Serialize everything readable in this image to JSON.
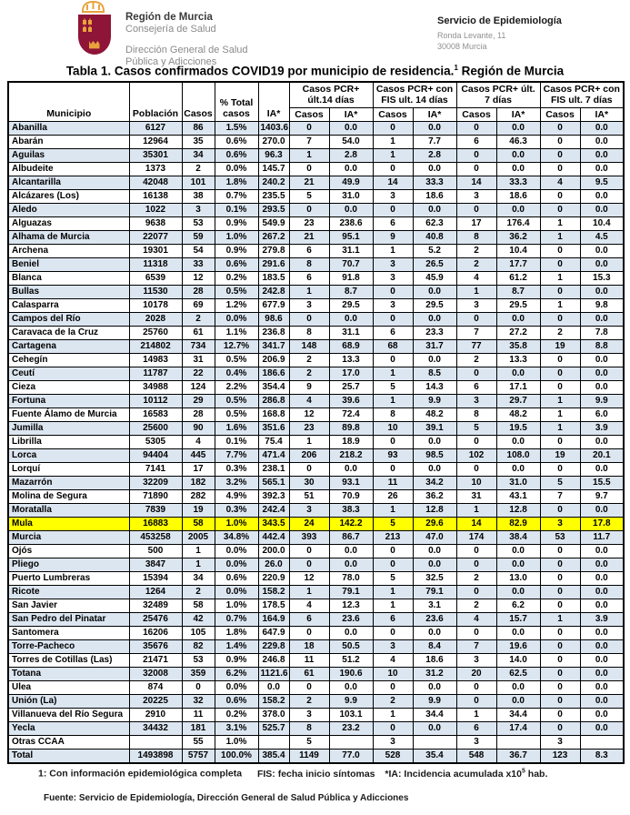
{
  "header": {
    "logo_org": "Región de Murcia",
    "logo_dept": "Consejería de Salud",
    "logo_sub": "Dirección General de Salud Pública y Adicciones",
    "service_title": "Servicio de Epidemiología",
    "address_line1": "Ronda Levante, 11",
    "address_line2": "30008 Murcia"
  },
  "title": {
    "prefix": "Tabla 1. Casos confirmados COVID19 por municipio de residencia.",
    "sup": "1",
    "suffix": " Región de Murcia"
  },
  "table": {
    "main_headers": [
      "Municipio",
      "Población",
      "Casos",
      "% Total casos",
      "IA*"
    ],
    "group_headers": [
      "Casos PCR+ últ.14 días",
      "Casos PCR+ con FIS ult. 14 días",
      "Casos PCR+ últ. 7 días",
      "Casos PCR+ con FIS ult. 7 días"
    ],
    "sub_casos": "Casos",
    "sub_ia": "IA*",
    "rows": [
      {
        "municipio": "Abanilla",
        "values": [
          "6127",
          "86",
          "1.5%",
          "1403.6",
          "0",
          "0.0",
          "0",
          "0.0",
          "0",
          "0.0",
          "0",
          "0.0"
        ]
      },
      {
        "municipio": "Abarán",
        "values": [
          "12964",
          "35",
          "0.6%",
          "270.0",
          "7",
          "54.0",
          "1",
          "7.7",
          "6",
          "46.3",
          "0",
          "0.0"
        ]
      },
      {
        "municipio": "Aguilas",
        "values": [
          "35301",
          "34",
          "0.6%",
          "96.3",
          "1",
          "2.8",
          "1",
          "2.8",
          "0",
          "0.0",
          "0",
          "0.0"
        ]
      },
      {
        "municipio": "Albudeite",
        "values": [
          "1373",
          "2",
          "0.0%",
          "145.7",
          "0",
          "0.0",
          "0",
          "0.0",
          "0",
          "0.0",
          "0",
          "0.0"
        ]
      },
      {
        "municipio": "Alcantarilla",
        "values": [
          "42048",
          "101",
          "1.8%",
          "240.2",
          "21",
          "49.9",
          "14",
          "33.3",
          "14",
          "33.3",
          "4",
          "9.5"
        ]
      },
      {
        "municipio": "Alcázares (Los)",
        "values": [
          "16138",
          "38",
          "0.7%",
          "235.5",
          "5",
          "31.0",
          "3",
          "18.6",
          "3",
          "18.6",
          "0",
          "0.0"
        ]
      },
      {
        "municipio": "Aledo",
        "values": [
          "1022",
          "3",
          "0.1%",
          "293.5",
          "0",
          "0.0",
          "0",
          "0.0",
          "0",
          "0.0",
          "0",
          "0.0"
        ]
      },
      {
        "municipio": "Alguazas",
        "values": [
          "9638",
          "53",
          "0.9%",
          "549.9",
          "23",
          "238.6",
          "6",
          "62.3",
          "17",
          "176.4",
          "1",
          "10.4"
        ]
      },
      {
        "municipio": "Alhama de Murcia",
        "values": [
          "22077",
          "59",
          "1.0%",
          "267.2",
          "21",
          "95.1",
          "9",
          "40.8",
          "8",
          "36.2",
          "1",
          "4.5"
        ]
      },
      {
        "municipio": "Archena",
        "values": [
          "19301",
          "54",
          "0.9%",
          "279.8",
          "6",
          "31.1",
          "1",
          "5.2",
          "2",
          "10.4",
          "0",
          "0.0"
        ]
      },
      {
        "municipio": "Beniel",
        "values": [
          "11318",
          "33",
          "0.6%",
          "291.6",
          "8",
          "70.7",
          "3",
          "26.5",
          "2",
          "17.7",
          "0",
          "0.0"
        ]
      },
      {
        "municipio": "Blanca",
        "values": [
          "6539",
          "12",
          "0.2%",
          "183.5",
          "6",
          "91.8",
          "3",
          "45.9",
          "4",
          "61.2",
          "1",
          "15.3"
        ]
      },
      {
        "municipio": "Bullas",
        "values": [
          "11530",
          "28",
          "0.5%",
          "242.8",
          "1",
          "8.7",
          "0",
          "0.0",
          "1",
          "8.7",
          "0",
          "0.0"
        ]
      },
      {
        "municipio": "Calasparra",
        "values": [
          "10178",
          "69",
          "1.2%",
          "677.9",
          "3",
          "29.5",
          "3",
          "29.5",
          "3",
          "29.5",
          "1",
          "9.8"
        ]
      },
      {
        "municipio": "Campos del Río",
        "values": [
          "2028",
          "2",
          "0.0%",
          "98.6",
          "0",
          "0.0",
          "0",
          "0.0",
          "0",
          "0.0",
          "0",
          "0.0"
        ]
      },
      {
        "municipio": "Caravaca de la Cruz",
        "values": [
          "25760",
          "61",
          "1.1%",
          "236.8",
          "8",
          "31.1",
          "6",
          "23.3",
          "7",
          "27.2",
          "2",
          "7.8"
        ]
      },
      {
        "municipio": "Cartagena",
        "values": [
          "214802",
          "734",
          "12.7%",
          "341.7",
          "148",
          "68.9",
          "68",
          "31.7",
          "77",
          "35.8",
          "19",
          "8.8"
        ]
      },
      {
        "municipio": "Cehegín",
        "values": [
          "14983",
          "31",
          "0.5%",
          "206.9",
          "2",
          "13.3",
          "0",
          "0.0",
          "2",
          "13.3",
          "0",
          "0.0"
        ]
      },
      {
        "municipio": "Ceutí",
        "values": [
          "11787",
          "22",
          "0.4%",
          "186.6",
          "2",
          "17.0",
          "1",
          "8.5",
          "0",
          "0.0",
          "0",
          "0.0"
        ]
      },
      {
        "municipio": "Cieza",
        "values": [
          "34988",
          "124",
          "2.2%",
          "354.4",
          "9",
          "25.7",
          "5",
          "14.3",
          "6",
          "17.1",
          "0",
          "0.0"
        ]
      },
      {
        "municipio": "Fortuna",
        "values": [
          "10112",
          "29",
          "0.5%",
          "286.8",
          "4",
          "39.6",
          "1",
          "9.9",
          "3",
          "29.7",
          "1",
          "9.9"
        ]
      },
      {
        "municipio": "Fuente Álamo de Murcia",
        "values": [
          "16583",
          "28",
          "0.5%",
          "168.8",
          "12",
          "72.4",
          "8",
          "48.2",
          "8",
          "48.2",
          "1",
          "6.0"
        ]
      },
      {
        "municipio": "Jumilla",
        "values": [
          "25600",
          "90",
          "1.6%",
          "351.6",
          "23",
          "89.8",
          "10",
          "39.1",
          "5",
          "19.5",
          "1",
          "3.9"
        ]
      },
      {
        "municipio": "Librilla",
        "values": [
          "5305",
          "4",
          "0.1%",
          "75.4",
          "1",
          "18.9",
          "0",
          "0.0",
          "0",
          "0.0",
          "0",
          "0.0"
        ]
      },
      {
        "municipio": "Lorca",
        "values": [
          "94404",
          "445",
          "7.7%",
          "471.4",
          "206",
          "218.2",
          "93",
          "98.5",
          "102",
          "108.0",
          "19",
          "20.1"
        ]
      },
      {
        "municipio": "Lorquí",
        "values": [
          "7141",
          "17",
          "0.3%",
          "238.1",
          "0",
          "0.0",
          "0",
          "0.0",
          "0",
          "0.0",
          "0",
          "0.0"
        ]
      },
      {
        "municipio": "Mazarrón",
        "values": [
          "32209",
          "182",
          "3.2%",
          "565.1",
          "30",
          "93.1",
          "11",
          "34.2",
          "10",
          "31.0",
          "5",
          "15.5"
        ]
      },
      {
        "municipio": "Molina de Segura",
        "values": [
          "71890",
          "282",
          "4.9%",
          "392.3",
          "51",
          "70.9",
          "26",
          "36.2",
          "31",
          "43.1",
          "7",
          "9.7"
        ]
      },
      {
        "municipio": "Moratalla",
        "values": [
          "7839",
          "19",
          "0.3%",
          "242.4",
          "3",
          "38.3",
          "1",
          "12.8",
          "1",
          "12.8",
          "0",
          "0.0"
        ]
      },
      {
        "municipio": "Mula",
        "highlight": true,
        "values": [
          "16883",
          "58",
          "1.0%",
          "343.5",
          "24",
          "142.2",
          "5",
          "29.6",
          "14",
          "82.9",
          "3",
          "17.8"
        ]
      },
      {
        "municipio": "Murcia",
        "values": [
          "453258",
          "2005",
          "34.8%",
          "442.4",
          "393",
          "86.7",
          "213",
          "47.0",
          "174",
          "38.4",
          "53",
          "11.7"
        ]
      },
      {
        "municipio": "Ojós",
        "values": [
          "500",
          "1",
          "0.0%",
          "200.0",
          "0",
          "0.0",
          "0",
          "0.0",
          "0",
          "0.0",
          "0",
          "0.0"
        ]
      },
      {
        "municipio": "Pliego",
        "values": [
          "3847",
          "1",
          "0.0%",
          "26.0",
          "0",
          "0.0",
          "0",
          "0.0",
          "0",
          "0.0",
          "0",
          "0.0"
        ]
      },
      {
        "municipio": "Puerto Lumbreras",
        "values": [
          "15394",
          "34",
          "0.6%",
          "220.9",
          "12",
          "78.0",
          "5",
          "32.5",
          "2",
          "13.0",
          "0",
          "0.0"
        ]
      },
      {
        "municipio": "Ricote",
        "values": [
          "1264",
          "2",
          "0.0%",
          "158.2",
          "1",
          "79.1",
          "1",
          "79.1",
          "0",
          "0.0",
          "0",
          "0.0"
        ]
      },
      {
        "municipio": "San Javier",
        "values": [
          "32489",
          "58",
          "1.0%",
          "178.5",
          "4",
          "12.3",
          "1",
          "3.1",
          "2",
          "6.2",
          "0",
          "0.0"
        ]
      },
      {
        "municipio": "San Pedro del Pinatar",
        "values": [
          "25476",
          "42",
          "0.7%",
          "164.9",
          "6",
          "23.6",
          "6",
          "23.6",
          "4",
          "15.7",
          "1",
          "3.9"
        ]
      },
      {
        "municipio": "Santomera",
        "values": [
          "16206",
          "105",
          "1.8%",
          "647.9",
          "0",
          "0.0",
          "0",
          "0.0",
          "0",
          "0.0",
          "0",
          "0.0"
        ]
      },
      {
        "municipio": "Torre-Pacheco",
        "values": [
          "35676",
          "82",
          "1.4%",
          "229.8",
          "18",
          "50.5",
          "3",
          "8.4",
          "7",
          "19.6",
          "0",
          "0.0"
        ]
      },
      {
        "municipio": "Torres de Cotillas (Las)",
        "values": [
          "21471",
          "53",
          "0.9%",
          "246.8",
          "11",
          "51.2",
          "4",
          "18.6",
          "3",
          "14.0",
          "0",
          "0.0"
        ]
      },
      {
        "municipio": "Totana",
        "values": [
          "32008",
          "359",
          "6.2%",
          "1121.6",
          "61",
          "190.6",
          "10",
          "31.2",
          "20",
          "62.5",
          "0",
          "0.0"
        ]
      },
      {
        "municipio": "Ulea",
        "values": [
          "874",
          "0",
          "0.0%",
          "0.0",
          "0",
          "0.0",
          "0",
          "0.0",
          "0",
          "0.0",
          "0",
          "0.0"
        ]
      },
      {
        "municipio": "Unión (La)",
        "values": [
          "20225",
          "32",
          "0.6%",
          "158.2",
          "2",
          "9.9",
          "2",
          "9.9",
          "0",
          "0.0",
          "0",
          "0.0"
        ]
      },
      {
        "municipio": "Villanueva del Río Segura",
        "values": [
          "2910",
          "11",
          "0.2%",
          "378.0",
          "3",
          "103.1",
          "1",
          "34.4",
          "1",
          "34.4",
          "0",
          "0.0"
        ]
      },
      {
        "municipio": "Yecla",
        "values": [
          "34432",
          "181",
          "3.1%",
          "525.7",
          "8",
          "23.2",
          "0",
          "0.0",
          "6",
          "17.4",
          "0",
          "0.0"
        ]
      },
      {
        "municipio": "Otras CCAA",
        "values": [
          "",
          "55",
          "1.0%",
          "",
          "5",
          "",
          "3",
          "",
          "3",
          "",
          "3",
          ""
        ]
      },
      {
        "municipio": "Total",
        "total": true,
        "values": [
          "1493898",
          "5757",
          "100.0%",
          "385.4",
          "1149",
          "77.0",
          "528",
          "35.4",
          "548",
          "36.7",
          "123",
          "8.3"
        ]
      }
    ]
  },
  "footnotes": {
    "note1": "1: Con información epidemiológica completa",
    "note2": "FIS: fecha inicio síntomas",
    "note3_prefix": "*IA: Incidencia acumulada x10",
    "note3_sup": "5",
    "note3_suffix": " hab.",
    "source": "Fuente: Servicio de Epidemiología, Dirección General de Salud Pública y Adicciones"
  },
  "colors": {
    "row_blue": "#DCE6F1",
    "highlight_yellow": "#FFFF00",
    "shield_maroon": "#8E1537",
    "crown_gold": "#E8A33C",
    "border": "#000000",
    "secondary_text_gray": "#8A8A8A"
  }
}
